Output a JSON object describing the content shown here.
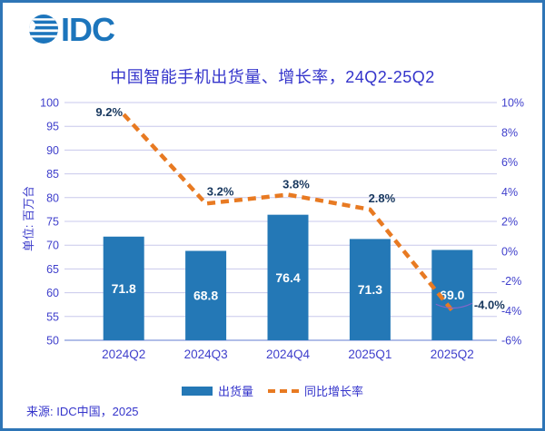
{
  "logo": {
    "text": "IDC"
  },
  "title": "中国智能手机出货量、增长率，24Q2-25Q2",
  "y_axis": {
    "unit_label": "单位: 百万台",
    "ticks": [
      100,
      95,
      90,
      85,
      80,
      75,
      70,
      65,
      60,
      55,
      50
    ],
    "min": 50,
    "max": 100
  },
  "y2_axis": {
    "ticks": [
      "10%",
      "8%",
      "6%",
      "4%",
      "2%",
      "0%",
      "-2%",
      "-4%",
      "-6%"
    ],
    "min": -6,
    "max": 10
  },
  "chart_data": {
    "type": "combo",
    "title": "中国智能手机出货量、增长率，24Q2-25Q2",
    "categories": [
      "2024Q2",
      "2024Q3",
      "2024Q4",
      "2025Q1",
      "2025Q2"
    ],
    "series": [
      {
        "name": "出货量",
        "type": "bar",
        "axis": "left",
        "values": [
          71.8,
          68.8,
          76.4,
          71.3,
          69.0
        ],
        "labels": [
          "71.8",
          "68.8",
          "76.4",
          "71.3",
          "69.0"
        ]
      },
      {
        "name": "同比增长率",
        "type": "line",
        "style": "dashed",
        "axis": "right",
        "values": [
          9.2,
          3.2,
          3.8,
          2.8,
          -4.0
        ],
        "labels": [
          "9.2%",
          "3.2%",
          "3.8%",
          "2.8%",
          "-4.0%"
        ]
      }
    ],
    "ylabel": "单位: 百万台",
    "ylim": [
      50,
      100
    ],
    "y2lim": [
      -6,
      10
    ],
    "grid": true,
    "legend_position": "bottom"
  },
  "legend": [
    {
      "label": "出货量",
      "swatch": "bar"
    },
    {
      "label": "同比增长率",
      "swatch": "dashed-line"
    }
  ],
  "source": "来源: IDC中国，2025",
  "colors": {
    "bar": "#2478b6",
    "line": "#e87a22",
    "axis_text": "#4040cc",
    "data_label": "#17375e",
    "bar_label": "#ffffff",
    "grid": "#c8c8ec",
    "baseline": "#97a9e0",
    "leader": "#8566c9",
    "border": "#2e75b6",
    "logo": "#1c75bc",
    "title_text": "#3434cb"
  }
}
